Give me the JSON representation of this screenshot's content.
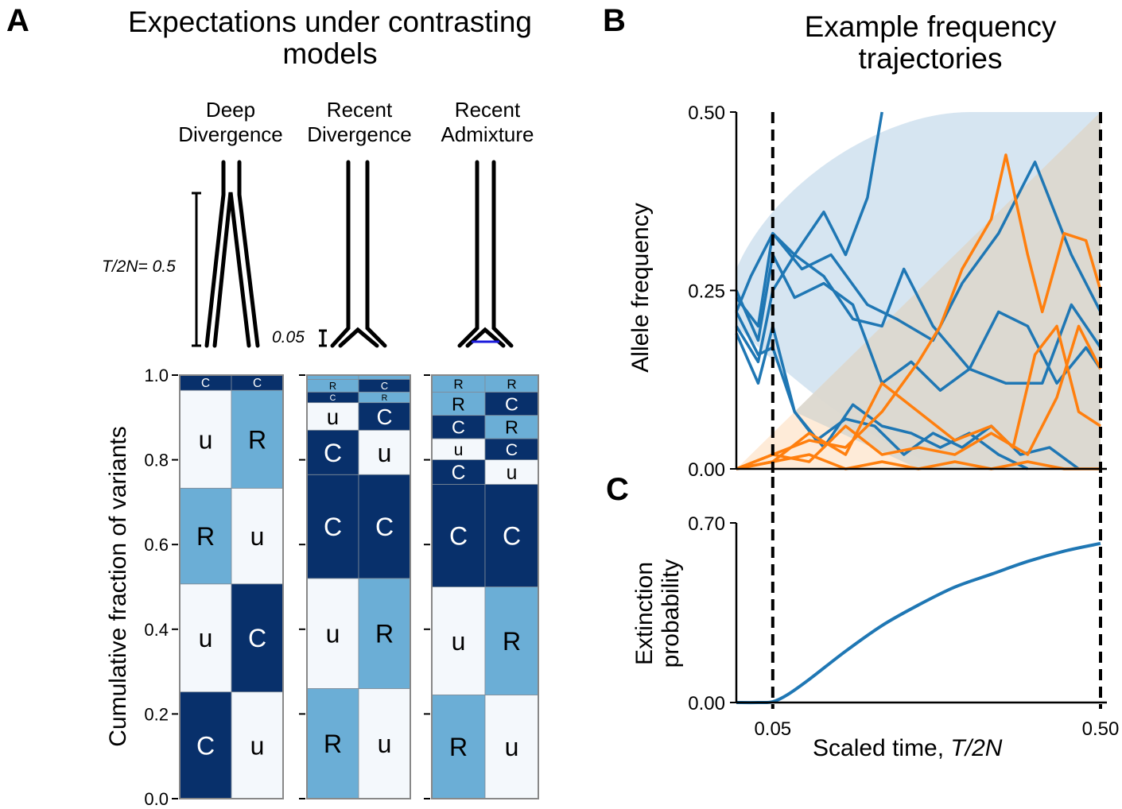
{
  "panel_a": {
    "letter": "A",
    "title_line1": "Expectations under contrasting",
    "title_line2": "models",
    "models": [
      {
        "line1": "Deep",
        "line2": "Divergence"
      },
      {
        "line1": "Recent",
        "line2": "Divergence"
      },
      {
        "line1": "Recent",
        "line2": "Admixture"
      }
    ],
    "scale_label_deep": "T/2N= 0.5",
    "scale_label_recent": "0.05"
  },
  "panel_b": {
    "letter": "B",
    "title_line1": "Example frequency",
    "title_line2": "trajectories"
  },
  "panel_c": {
    "letter": "C"
  },
  "colors": {
    "dark_blue": "#08306b",
    "mid_blue": "#6baed6",
    "pale": "#f4f8fc",
    "traj_blue": "#1f77b4",
    "traj_orange": "#ff7f0e",
    "band_blue": "#cfe1ef",
    "band_orange": "#fde3c8",
    "band_overlap": "#d6d6cf",
    "admix_line": "#1a1adc"
  },
  "chart_data": [
    {
      "type": "bar",
      "subtype": "stacked-categorical",
      "ylabel": "Cumulative fraction of variants",
      "ylim": [
        0,
        1
      ],
      "yticks": [
        "0.0",
        "0.2",
        "0.4",
        "0.6",
        "0.8",
        "1.0"
      ],
      "ytick_values": [
        0,
        0.2,
        0.4,
        0.6,
        0.8,
        1.0
      ],
      "legend_codes": {
        "C": "dark_blue",
        "R": "mid_blue",
        "u": "pale"
      },
      "panels": [
        {
          "model": "Deep Divergence",
          "segments": [
            {
              "from": 0.0,
              "to": 0.252,
              "left": "C",
              "right": "u"
            },
            {
              "from": 0.252,
              "to": 0.507,
              "left": "u",
              "right": "C"
            },
            {
              "from": 0.507,
              "to": 0.733,
              "left": "R",
              "right": "u"
            },
            {
              "from": 0.733,
              "to": 0.964,
              "left": "u",
              "right": "R"
            },
            {
              "from": 0.964,
              "to": 1.0,
              "left": "C",
              "right": "C"
            }
          ]
        },
        {
          "model": "Recent Divergence",
          "segments": [
            {
              "from": 0.0,
              "to": 0.26,
              "left": "R",
              "right": "u"
            },
            {
              "from": 0.26,
              "to": 0.52,
              "left": "u",
              "right": "R"
            },
            {
              "from": 0.52,
              "to": 0.765,
              "left": "C",
              "right": "C"
            },
            {
              "from": 0.765,
              "to": 0.87,
              "left": "C",
              "right": "u"
            },
            {
              "from": 0.87,
              "to": 0.935,
              "left": "u",
              "right": "C"
            },
            {
              "from": 0.935,
              "to": 0.96,
              "left": "C",
              "right": "R"
            },
            {
              "from": 0.96,
              "to": 0.99,
              "left": "R",
              "right": "C"
            },
            {
              "from": 0.99,
              "to": 1.0,
              "left": "R",
              "right": "R"
            }
          ]
        },
        {
          "model": "Recent Admixture",
          "segments": [
            {
              "from": 0.0,
              "to": 0.245,
              "left": "R",
              "right": "u"
            },
            {
              "from": 0.245,
              "to": 0.5,
              "left": "u",
              "right": "R"
            },
            {
              "from": 0.5,
              "to": 0.742,
              "left": "C",
              "right": "C"
            },
            {
              "from": 0.742,
              "to": 0.8,
              "left": "C",
              "right": "u"
            },
            {
              "from": 0.8,
              "to": 0.85,
              "left": "u",
              "right": "C"
            },
            {
              "from": 0.85,
              "to": 0.905,
              "left": "C",
              "right": "R"
            },
            {
              "from": 0.905,
              "to": 0.96,
              "left": "R",
              "right": "C"
            },
            {
              "from": 0.96,
              "to": 1.0,
              "left": "R",
              "right": "R"
            }
          ]
        }
      ]
    },
    {
      "type": "line",
      "title": "Example frequency trajectories",
      "ylabel": "Allele frequency",
      "ylim": [
        0,
        0.5
      ],
      "xlim": [
        0,
        0.5
      ],
      "yticks": [
        "0.00",
        "0.25",
        "0.50"
      ],
      "ytick_values": [
        0,
        0.25,
        0.5
      ],
      "vlines": [
        0.05,
        0.5
      ],
      "bands": [
        {
          "name": "blue-envelope",
          "color": "band_blue"
        },
        {
          "name": "orange-envelope",
          "color": "band_orange"
        }
      ],
      "series": [
        {
          "name": "blue-1",
          "color": "traj_blue",
          "x": [
            0,
            0.02,
            0.05,
            0.08,
            0.12,
            0.15,
            0.18,
            0.2
          ],
          "y": [
            0.22,
            0.27,
            0.33,
            0.3,
            0.36,
            0.3,
            0.38,
            0.5
          ]
        },
        {
          "name": "blue-2",
          "color": "traj_blue",
          "x": [
            0,
            0.03,
            0.05,
            0.09,
            0.13,
            0.18,
            0.22,
            0.27,
            0.31,
            0.36,
            0.41,
            0.46,
            0.5
          ],
          "y": [
            0.24,
            0.2,
            0.33,
            0.28,
            0.3,
            0.23,
            0.21,
            0.18,
            0.26,
            0.33,
            0.43,
            0.3,
            0.22
          ]
        },
        {
          "name": "blue-3",
          "color": "traj_blue",
          "x": [
            0,
            0.03,
            0.05,
            0.08,
            0.12,
            0.16,
            0.2,
            0.23,
            0.27,
            0.32,
            0.37,
            0.42,
            0.46,
            0.5
          ],
          "y": [
            0.2,
            0.15,
            0.25,
            0.3,
            0.27,
            0.21,
            0.2,
            0.28,
            0.2,
            0.14,
            0.12,
            0.12,
            0.23,
            0.17
          ]
        },
        {
          "name": "blue-4",
          "color": "traj_blue",
          "x": [
            0,
            0.03,
            0.05,
            0.08,
            0.12,
            0.16,
            0.2,
            0.24,
            0.28,
            0.32,
            0.36,
            0.4,
            0.44,
            0.48,
            0.5
          ],
          "y": [
            0.25,
            0.18,
            0.3,
            0.24,
            0.26,
            0.23,
            0.12,
            0.15,
            0.11,
            0.14,
            0.22,
            0.2,
            0.12,
            0.17,
            0.14
          ]
        },
        {
          "name": "blue-5",
          "color": "traj_blue",
          "x": [
            0,
            0.03,
            0.05,
            0.08,
            0.11,
            0.15,
            0.19,
            0.23,
            0.27,
            0.31,
            0.35,
            0.39,
            0.43,
            0.47
          ],
          "y": [
            0.19,
            0.12,
            0.2,
            0.08,
            0.04,
            0.07,
            0.06,
            0.02,
            0.05,
            0.03,
            0.06,
            0.02,
            0.03,
            0.0
          ]
        },
        {
          "name": "blue-6",
          "color": "traj_blue",
          "x": [
            0,
            0.03,
            0.05,
            0.08,
            0.12,
            0.16,
            0.2,
            0.24,
            0.28,
            0.32,
            0.36,
            0.4
          ],
          "y": [
            0.22,
            0.16,
            0.17,
            0.08,
            0.03,
            0.09,
            0.06,
            0.05,
            0.03,
            0.05,
            0.02,
            0.0
          ]
        },
        {
          "name": "orange-1",
          "color": "traj_orange",
          "x": [
            0,
            0.05,
            0.1,
            0.15,
            0.2,
            0.25,
            0.28,
            0.31,
            0.35,
            0.37,
            0.4,
            0.42,
            0.45,
            0.48,
            0.5
          ],
          "y": [
            0,
            0.02,
            0.04,
            0.03,
            0.08,
            0.15,
            0.2,
            0.28,
            0.35,
            0.44,
            0.3,
            0.22,
            0.33,
            0.32,
            0.25
          ]
        },
        {
          "name": "orange-2",
          "color": "traj_orange",
          "x": [
            0,
            0.05,
            0.1,
            0.15,
            0.2,
            0.25,
            0.3,
            0.35,
            0.38,
            0.41,
            0.44,
            0.47,
            0.5
          ],
          "y": [
            0,
            0.01,
            0.05,
            0.02,
            0.12,
            0.08,
            0.04,
            0.06,
            0.03,
            0.16,
            0.2,
            0.08,
            0.06
          ]
        },
        {
          "name": "orange-3",
          "color": "traj_orange",
          "x": [
            0,
            0.05,
            0.1,
            0.15,
            0.2,
            0.25,
            0.3,
            0.35,
            0.4,
            0.44,
            0.47,
            0.5
          ],
          "y": [
            0,
            0.02,
            0.01,
            0.06,
            0.02,
            0.03,
            0.02,
            0.05,
            0.02,
            0.1,
            0.2,
            0.14
          ]
        },
        {
          "name": "orange-4",
          "color": "traj_orange",
          "x": [
            0,
            0.05,
            0.1,
            0.15,
            0.2,
            0.25,
            0.3,
            0.35,
            0.4,
            0.45,
            0.5
          ],
          "y": [
            0,
            0.01,
            0.02,
            0.0,
            0.01,
            0.0,
            0.01,
            0.0,
            0.01,
            0.0,
            0.0
          ]
        }
      ]
    },
    {
      "type": "line",
      "ylabel": "Extinction probability",
      "xlabel": "Scaled time, T/2N",
      "ylim": [
        0,
        0.7
      ],
      "xlim": [
        0,
        0.5
      ],
      "yticks": [
        "0.00",
        "0.70"
      ],
      "ytick_values": [
        0,
        0.7
      ],
      "xticks": [
        "0.05",
        "0.50"
      ],
      "xtick_values": [
        0.05,
        0.5
      ],
      "vlines": [
        0.05,
        0.5
      ],
      "series": [
        {
          "name": "extinction-probability",
          "color": "traj_blue",
          "x": [
            0,
            0.03,
            0.05,
            0.07,
            0.1,
            0.15,
            0.2,
            0.25,
            0.3,
            0.35,
            0.4,
            0.45,
            0.5
          ],
          "y": [
            0,
            0,
            0.003,
            0.03,
            0.09,
            0.2,
            0.3,
            0.38,
            0.45,
            0.5,
            0.55,
            0.59,
            0.62
          ]
        }
      ]
    }
  ]
}
